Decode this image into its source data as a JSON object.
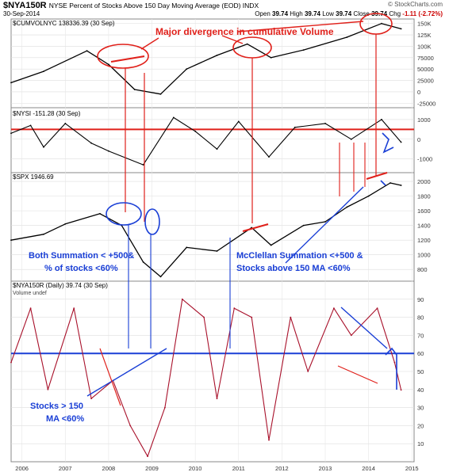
{
  "header": {
    "symbol": "$NYA150R",
    "description": "NYSE Percent of Stocks Above 150 Day Moving Average (EOD)  INDX",
    "date": "30-Sep-2014",
    "brand": "© StockCharts.com",
    "open_label": "Open",
    "open": "39.74",
    "high_label": "High",
    "high": "39.74",
    "low_label": "Low",
    "low": "39.74",
    "close_label": "Close",
    "close": "39.74",
    "chg_label": "Chg",
    "chg": "-1.11 (-2.72%)"
  },
  "panels": {
    "p1_label": "$CUMVOLNYC 138336.39 (30 Sep)",
    "p2_label": "$NYSI -151.28 (30 Sep)",
    "p3_label": "$SPX 1946.69",
    "p4_label": "$NYA150R (Daily) 39.74 (30 Sep)",
    "p4_sublabel": "Volume undef"
  },
  "annotations": {
    "divergence": "Major divergence in cumulative Volume",
    "both_1": "Both Summation < +500&",
    "both_2": "% of stocks <60%",
    "mcc_1": "McClellan Summation <+500 &",
    "mcc_2": "Stocks above 150 MA <60%",
    "stocks_1": "Stocks > 150",
    "stocks_2": "MA <60%"
  },
  "colors": {
    "annotation_red": "#e0201a",
    "annotation_blue": "#1a3fd6",
    "price": "#000000",
    "breadth": "#a8102a"
  },
  "chart_data": [
    {
      "type": "line",
      "name": "$CUMVOLNYC",
      "x": [
        2005.75,
        2006.5,
        2007.5,
        2008.0,
        2008.6,
        2009.2,
        2009.8,
        2010.5,
        2011.2,
        2011.75,
        2012.5,
        2013.5,
        2014.3,
        2014.75
      ],
      "values": [
        20000,
        45000,
        90000,
        60000,
        5000,
        -5000,
        50000,
        80000,
        105000,
        75000,
        92000,
        120000,
        150000,
        138336
      ],
      "yticks": [
        150000,
        125000,
        100000,
        75000,
        50000,
        25000,
        0,
        -25000
      ],
      "ytick_labels": [
        "150K",
        "125K",
        "100K",
        "75000",
        "50000",
        "25000",
        "0",
        "-25000"
      ]
    },
    {
      "type": "line",
      "name": "$NYSI",
      "x": [
        2005.75,
        2006.2,
        2006.5,
        2007.0,
        2007.6,
        2008.0,
        2008.8,
        2009.5,
        2010.0,
        2010.5,
        2011.0,
        2011.7,
        2012.3,
        2013.0,
        2013.6,
        2014.3,
        2014.75
      ],
      "values": [
        300,
        700,
        -400,
        800,
        -200,
        -600,
        -1300,
        1100,
        400,
        -500,
        900,
        -900,
        600,
        800,
        0,
        1000,
        -151
      ],
      "yticks": [
        1000,
        0,
        -1000
      ],
      "ytick_labels": [
        "1000",
        "0",
        "-1000"
      ],
      "reference_line": 500
    },
    {
      "type": "line",
      "name": "$SPX",
      "x": [
        2005.75,
        2006.5,
        2007.0,
        2007.8,
        2008.3,
        2008.8,
        2009.2,
        2009.8,
        2010.5,
        2011.3,
        2011.75,
        2012.5,
        2013.0,
        2013.5,
        2014.0,
        2014.5,
        2014.75
      ],
      "values": [
        1200,
        1280,
        1420,
        1560,
        1400,
        900,
        700,
        1100,
        1050,
        1370,
        1130,
        1400,
        1450,
        1650,
        1800,
        1980,
        1946.69
      ],
      "yticks": [
        2000,
        1800,
        1600,
        1400,
        1200,
        1000,
        800
      ],
      "ytick_labels": [
        "2000",
        "1800",
        "1600",
        "1400",
        "1200",
        "1000",
        "800"
      ]
    },
    {
      "type": "line",
      "name": "$NYA150R",
      "x": [
        2005.75,
        2006.2,
        2006.6,
        2007.2,
        2007.6,
        2008.1,
        2008.5,
        2008.9,
        2009.3,
        2009.7,
        2010.2,
        2010.5,
        2010.9,
        2011.3,
        2011.7,
        2012.2,
        2012.6,
        2013.2,
        2013.6,
        2014.2,
        2014.6,
        2014.75
      ],
      "values": [
        55,
        85,
        40,
        85,
        35,
        45,
        20,
        3,
        30,
        90,
        80,
        35,
        85,
        80,
        12,
        80,
        50,
        85,
        70,
        85,
        55,
        39.74
      ],
      "yticks": [
        90,
        80,
        70,
        60,
        50,
        40,
        30,
        20,
        10
      ],
      "ytick_labels": [
        "90",
        "80",
        "70",
        "60",
        "50",
        "40",
        "30",
        "20",
        "10"
      ],
      "reference_line": 60,
      "xticks": [
        2006,
        2007,
        2008,
        2009,
        2010,
        2011,
        2012,
        2013,
        2014,
        2015
      ],
      "xtick_labels": [
        "2006",
        "2007",
        "2008",
        "2009",
        "2010",
        "2011",
        "2012",
        "2013",
        "2014",
        "2015"
      ]
    }
  ]
}
